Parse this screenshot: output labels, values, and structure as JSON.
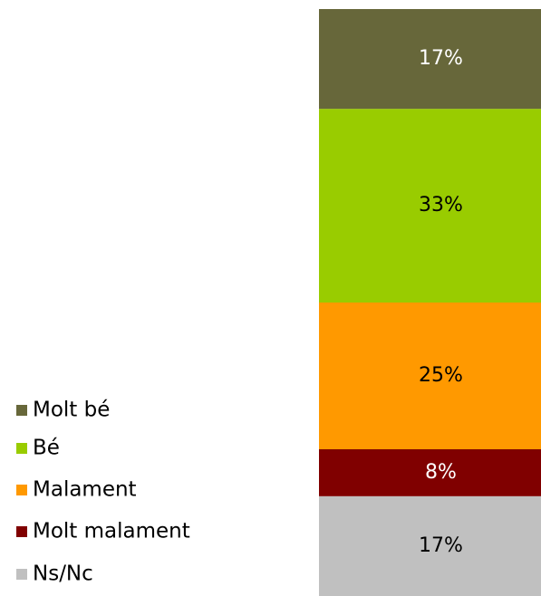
{
  "chart_data": {
    "type": "stacked_bar",
    "series": [
      {
        "name": "Molt bé",
        "color": "#67673a",
        "values": [
          17
        ],
        "value_labels": [
          "17%"
        ]
      },
      {
        "name": "Bé",
        "color": "#99cc00",
        "values": [
          33
        ],
        "value_labels": [
          "33%"
        ]
      },
      {
        "name": "Malament",
        "color": "#ff9900",
        "values": [
          25
        ],
        "value_labels": [
          "25%"
        ]
      },
      {
        "name": "Molt malament",
        "color": "#800000",
        "values": [
          8
        ],
        "value_labels": [
          "8%"
        ]
      },
      {
        "name": "Ns/Nc",
        "color": "#c0c0c0",
        "values": [
          17
        ],
        "value_labels": [
          "17%"
        ]
      }
    ],
    "legend": "left"
  }
}
